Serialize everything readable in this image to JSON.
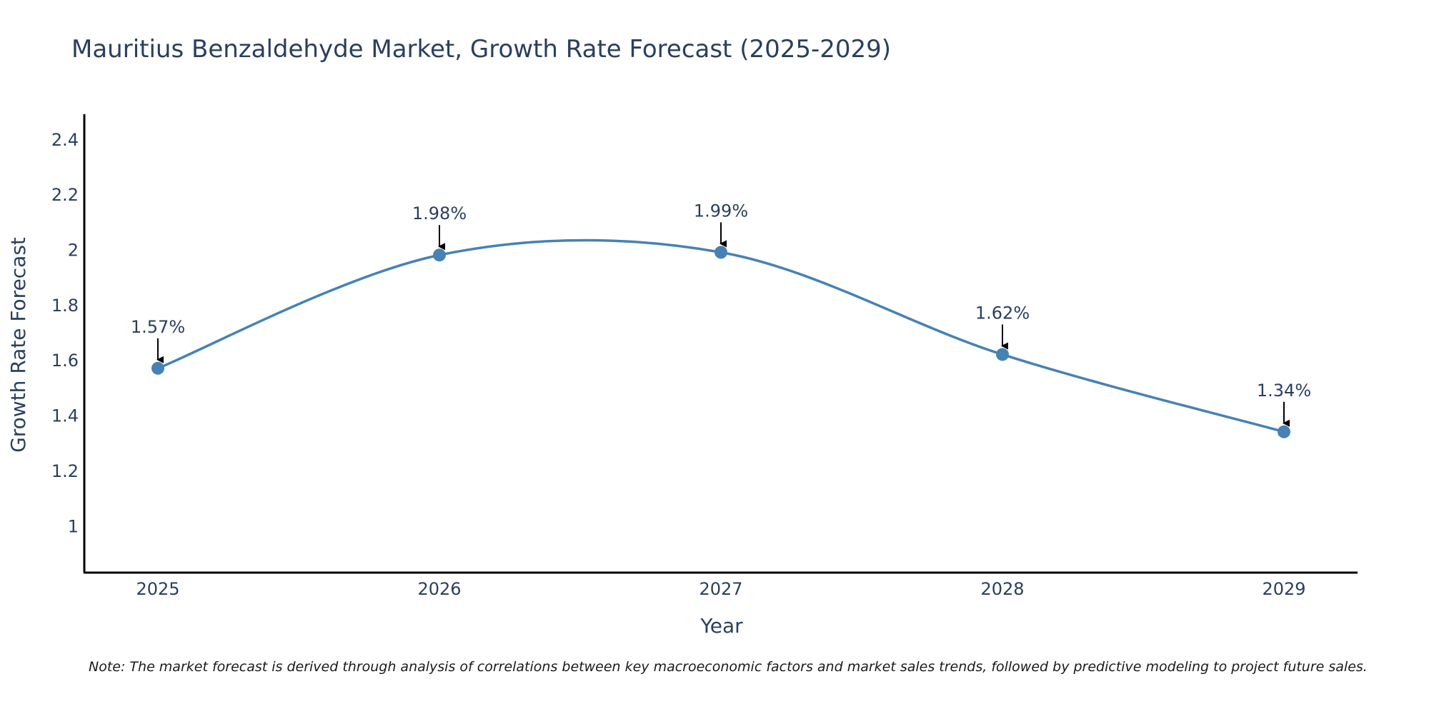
{
  "chart_data": {
    "type": "line",
    "title": "Mauritius Benzaldehyde Market, Growth Rate Forecast (2025-2029)",
    "xlabel": "Year",
    "ylabel": "Growth Rate Forecast",
    "categories": [
      "2025",
      "2026",
      "2027",
      "2028",
      "2029"
    ],
    "values": [
      1.57,
      1.98,
      1.99,
      1.62,
      1.34
    ],
    "data_labels": [
      "1.57%",
      "1.98%",
      "1.99%",
      "1.62%",
      "1.34%"
    ],
    "ylim": [
      0.83,
      2.49
    ],
    "yticks": [
      1,
      1.2,
      1.4,
      1.6,
      1.8,
      2,
      2.2,
      2.4
    ],
    "ytick_labels": [
      "1",
      "1.2",
      "1.4",
      "1.6",
      "1.8",
      "2",
      "2.2",
      "2.4"
    ],
    "line_shape": "spline",
    "grid": false,
    "series_color": "#4682b4"
  },
  "note": "Note: The market forecast is derived through analysis of correlations between key macroeconomic factors and market sales trends, followed by predictive modeling to project future sales."
}
